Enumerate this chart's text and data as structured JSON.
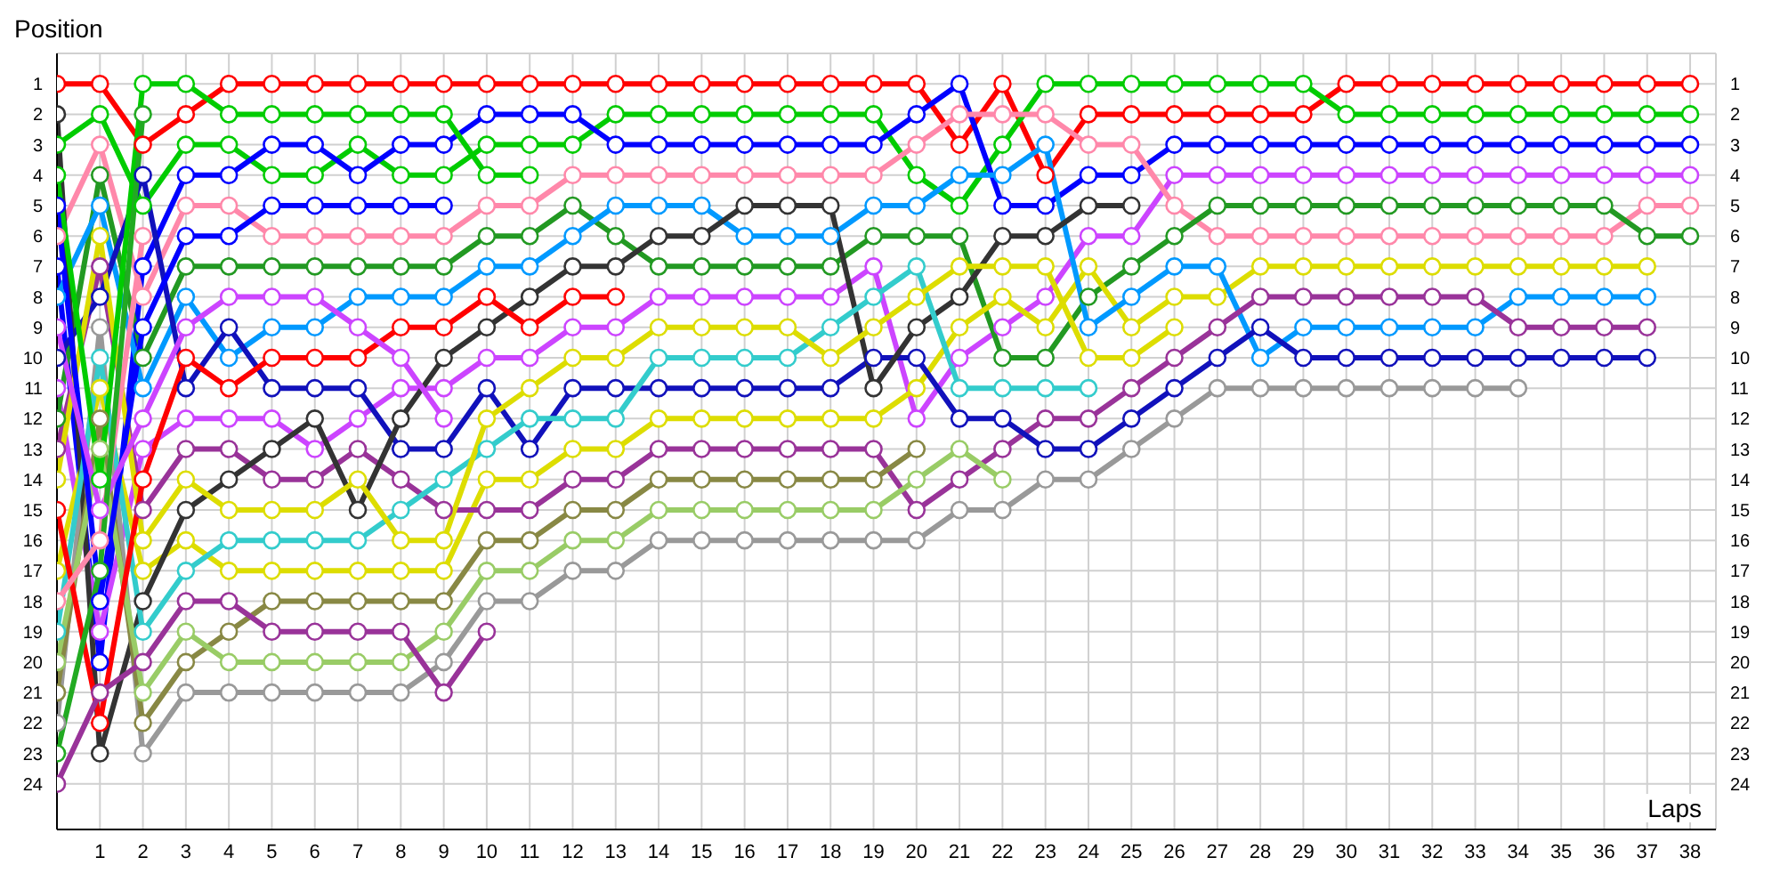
{
  "chart_data": {
    "type": "line",
    "xlabel": "Laps",
    "ylabel": "Position",
    "x": [
      0,
      1,
      2,
      3,
      4,
      5,
      6,
      7,
      8,
      9,
      10,
      11,
      12,
      13,
      14,
      15,
      16,
      17,
      18,
      19,
      20,
      21,
      22,
      23,
      24,
      25,
      26,
      27,
      28,
      29,
      30,
      31,
      32,
      33,
      34,
      35,
      36,
      37,
      38
    ],
    "xlim": [
      0,
      38.6
    ],
    "xticks": [
      1,
      2,
      3,
      4,
      5,
      6,
      7,
      8,
      9,
      10,
      11,
      12,
      13,
      14,
      15,
      16,
      17,
      18,
      19,
      20,
      21,
      22,
      23,
      24,
      25,
      26,
      27,
      28,
      29,
      30,
      31,
      32,
      33,
      34,
      35,
      36,
      37,
      38
    ],
    "ylim": [
      25.5,
      0
    ],
    "yticks": [
      1,
      2,
      3,
      4,
      5,
      6,
      7,
      8,
      9,
      10,
      11,
      12,
      13,
      14,
      15,
      16,
      17,
      18,
      19,
      20,
      21,
      22,
      23,
      24
    ],
    "y2lim": [
      25.5,
      0
    ],
    "y2ticks": [
      1,
      2,
      3,
      4,
      5,
      6,
      7,
      8,
      9,
      10,
      11,
      12,
      13,
      14,
      15,
      16,
      17,
      18,
      19,
      20,
      21,
      22,
      23,
      24
    ],
    "grid": true,
    "marker": "circle",
    "series": [
      {
        "color": "#ff0000",
        "values": [
          1,
          1,
          3,
          2,
          1,
          1,
          1,
          1,
          1,
          1,
          1,
          1,
          1,
          1,
          1,
          1,
          1,
          1,
          1,
          1,
          1,
          3,
          1,
          4,
          2,
          2,
          2,
          2,
          2,
          2,
          1,
          1,
          1,
          1,
          1,
          1,
          1,
          1,
          1
        ]
      },
      {
        "color": "#00cc00",
        "values": [
          3,
          2,
          5,
          3,
          3,
          4,
          4,
          3,
          4,
          4,
          3,
          3,
          3,
          2,
          2,
          2,
          2,
          2,
          2,
          2,
          4,
          5,
          3,
          1,
          1,
          1,
          1,
          1,
          1,
          1,
          2,
          2,
          2,
          2,
          2,
          2,
          2,
          2,
          2
        ]
      },
      {
        "color": "#0000ff",
        "values": [
          7,
          20,
          7,
          4,
          4,
          3,
          3,
          4,
          3,
          3,
          2,
          2,
          2,
          3,
          3,
          3,
          3,
          3,
          3,
          3,
          2,
          1,
          5,
          5,
          4,
          4,
          3,
          3,
          3,
          3,
          3,
          3,
          3,
          3,
          3,
          3,
          3,
          3,
          3
        ]
      },
      {
        "color": "#cc44ff",
        "values": [
          11,
          19,
          13,
          12,
          12,
          12,
          13,
          12,
          11,
          11,
          10,
          10,
          9,
          9,
          8,
          8,
          8,
          8,
          8,
          7,
          12,
          10,
          9,
          8,
          6,
          6,
          4,
          4,
          4,
          4,
          4,
          4,
          4,
          4,
          4,
          4,
          4,
          4,
          4
        ]
      },
      {
        "color": "#ff88aa",
        "values": [
          6,
          3,
          8,
          5,
          5,
          6,
          6,
          6,
          6,
          6,
          5,
          5,
          4,
          4,
          4,
          4,
          4,
          4,
          4,
          4,
          3,
          2,
          2,
          2,
          3,
          3,
          5,
          6,
          6,
          6,
          6,
          6,
          6,
          6,
          6,
          6,
          6,
          5,
          5
        ]
      },
      {
        "color": "#229922",
        "values": [
          12,
          4,
          10,
          7,
          7,
          7,
          7,
          7,
          7,
          7,
          6,
          6,
          5,
          6,
          7,
          7,
          7,
          7,
          7,
          6,
          6,
          6,
          10,
          10,
          8,
          7,
          6,
          5,
          5,
          5,
          5,
          5,
          5,
          5,
          5,
          5,
          5,
          6,
          6
        ]
      },
      {
        "color": "#dddd00",
        "values": [
          17,
          11,
          17,
          16,
          17,
          17,
          17,
          17,
          17,
          17,
          14,
          14,
          13,
          13,
          12,
          12,
          12,
          12,
          12,
          12,
          11,
          9,
          8,
          9,
          7,
          9,
          8,
          8,
          7,
          7,
          7,
          7,
          7,
          7,
          7,
          7,
          7,
          7,
          null
        ]
      },
      {
        "color": "#0099ff",
        "values": [
          8,
          5,
          11,
          8,
          10,
          9,
          9,
          8,
          8,
          8,
          7,
          7,
          6,
          5,
          5,
          5,
          6,
          6,
          6,
          5,
          5,
          4,
          4,
          3,
          9,
          8,
          7,
          7,
          10,
          9,
          9,
          9,
          9,
          9,
          8,
          8,
          8,
          8,
          null
        ]
      },
      {
        "color": "#993399",
        "values": [
          13,
          7,
          15,
          13,
          13,
          14,
          14,
          13,
          14,
          15,
          15,
          15,
          14,
          14,
          13,
          13,
          13,
          13,
          13,
          13,
          15,
          14,
          13,
          12,
          12,
          11,
          10,
          9,
          8,
          8,
          8,
          8,
          8,
          8,
          9,
          9,
          9,
          9,
          null
        ]
      },
      {
        "color": "#1111bb",
        "values": [
          10,
          8,
          4,
          11,
          9,
          11,
          11,
          11,
          13,
          13,
          11,
          13,
          11,
          11,
          11,
          11,
          11,
          11,
          11,
          10,
          10,
          12,
          12,
          13,
          13,
          12,
          11,
          10,
          9,
          10,
          10,
          10,
          10,
          10,
          10,
          10,
          10,
          10,
          null
        ]
      },
      {
        "color": "#999999",
        "values": [
          22,
          9,
          23,
          21,
          21,
          21,
          21,
          21,
          21,
          20,
          18,
          18,
          17,
          17,
          16,
          16,
          16,
          16,
          16,
          16,
          16,
          15,
          15,
          14,
          14,
          13,
          12,
          11,
          11,
          11,
          11,
          11,
          11,
          11,
          11,
          null,
          null,
          null,
          null
        ]
      },
      {
        "color": "#333333",
        "values": [
          2,
          23,
          18,
          15,
          14,
          13,
          12,
          15,
          12,
          10,
          9,
          8,
          7,
          7,
          6,
          6,
          5,
          5,
          5,
          11,
          9,
          8,
          6,
          6,
          5,
          5,
          null,
          null,
          null,
          null,
          null,
          null,
          null,
          null,
          null,
          null,
          null,
          null,
          null
        ]
      },
      {
        "color": "#33cccc",
        "values": [
          19,
          10,
          19,
          17,
          16,
          16,
          16,
          16,
          15,
          14,
          13,
          12,
          12,
          12,
          10,
          10,
          10,
          10,
          9,
          8,
          7,
          11,
          11,
          11,
          11,
          null,
          null,
          null,
          null,
          null,
          null,
          null,
          null,
          null,
          null,
          null,
          null,
          null,
          null
        ]
      },
      {
        "color": "#dddd00",
        "values": [
          14,
          6,
          16,
          14,
          15,
          15,
          15,
          14,
          16,
          16,
          12,
          11,
          10,
          10,
          9,
          9,
          9,
          9,
          10,
          9,
          8,
          7,
          7,
          7,
          10,
          10,
          9,
          null,
          null,
          null,
          null,
          null,
          null,
          null,
          null,
          null,
          null,
          null,
          null
        ]
      },
      {
        "color": "#888844",
        "values": [
          21,
          12,
          22,
          20,
          19,
          18,
          18,
          18,
          18,
          18,
          16,
          16,
          15,
          15,
          14,
          14,
          14,
          14,
          14,
          14,
          13,
          null,
          null,
          null,
          null,
          null,
          null,
          null,
          null,
          null,
          null,
          null,
          null,
          null,
          null,
          null,
          null,
          null,
          null
        ]
      },
      {
        "color": "#99cc66",
        "values": [
          20,
          13,
          21,
          19,
          20,
          20,
          20,
          20,
          20,
          19,
          17,
          17,
          16,
          16,
          15,
          15,
          15,
          15,
          15,
          15,
          14,
          13,
          14,
          null,
          null,
          null,
          null,
          null,
          null,
          null,
          null,
          null,
          null,
          null,
          null,
          null,
          null,
          null,
          null
        ]
      },
      {
        "color": "#ff0000",
        "values": [
          15,
          22,
          14,
          10,
          11,
          10,
          10,
          10,
          9,
          9,
          8,
          9,
          8,
          8,
          null,
          null,
          null,
          null,
          null,
          null,
          null,
          null,
          null,
          null,
          null,
          null,
          null,
          null,
          null,
          null,
          null,
          null,
          null,
          null,
          null,
          null,
          null,
          null,
          null
        ]
      },
      {
        "color": "#00cc00",
        "values": [
          4,
          14,
          1,
          1,
          2,
          2,
          2,
          2,
          2,
          2,
          4,
          4,
          null,
          null,
          null,
          null,
          null,
          null,
          null,
          null,
          null,
          null,
          null,
          null,
          null,
          null,
          null,
          null,
          null,
          null,
          null,
          null,
          null,
          null,
          null,
          null,
          null,
          null,
          null
        ]
      },
      {
        "color": "#0000ff",
        "values": [
          5,
          18,
          9,
          6,
          6,
          5,
          5,
          5,
          5,
          5,
          null,
          null,
          null,
          null,
          null,
          null,
          null,
          null,
          null,
          null,
          null,
          null,
          null,
          null,
          null,
          null,
          null,
          null,
          null,
          null,
          null,
          null,
          null,
          null,
          null,
          null,
          null,
          null,
          null
        ]
      },
      {
        "color": "#cc44ff",
        "values": [
          9,
          15,
          12,
          9,
          8,
          8,
          8,
          9,
          10,
          12,
          null,
          null,
          null,
          null,
          null,
          null,
          null,
          null,
          null,
          null,
          null,
          null,
          null,
          null,
          null,
          null,
          null,
          null,
          null,
          null,
          null,
          null,
          null,
          null,
          null,
          null,
          null,
          null,
          null
        ]
      },
      {
        "color": "#993399",
        "values": [
          24,
          21,
          20,
          18,
          18,
          19,
          19,
          19,
          19,
          21,
          19,
          null,
          null,
          null,
          null,
          null,
          null,
          null,
          null,
          null,
          null,
          null,
          null,
          null,
          null,
          null,
          null,
          null,
          null,
          null,
          null,
          null,
          null,
          null,
          null,
          null,
          null,
          null,
          null
        ]
      },
      {
        "color": "#ff88aa",
        "values": [
          18,
          16,
          6,
          null,
          null,
          null,
          null,
          null,
          null,
          null,
          null,
          null,
          null,
          null,
          null,
          null,
          null,
          null,
          null,
          null,
          null,
          null,
          null,
          null,
          null,
          null,
          null,
          null,
          null,
          null,
          null,
          null,
          null,
          null,
          null,
          null,
          null,
          null,
          null
        ]
      },
      {
        "color": "#22aa22",
        "values": [
          23,
          17,
          2,
          null,
          null,
          null,
          null,
          null,
          null,
          null,
          null,
          null,
          null,
          null,
          null,
          null,
          null,
          null,
          null,
          null,
          null,
          null,
          null,
          null,
          null,
          null,
          null,
          null,
          null,
          null,
          null,
          null,
          null,
          null,
          null,
          null,
          null,
          null,
          null
        ]
      }
    ]
  }
}
